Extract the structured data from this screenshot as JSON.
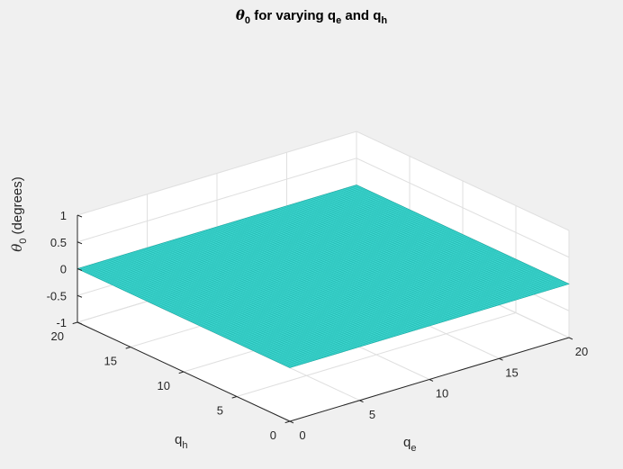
{
  "chart_data": {
    "type": "surface",
    "title": {
      "symbol": "θ",
      "symbol_sub": "0",
      "pre": " for varying q",
      "pre_sub": "e",
      "mid": " and q",
      "mid_sub": "h"
    },
    "xlabel": {
      "base": "q",
      "sub": "e"
    },
    "ylabel": {
      "base": "q",
      "sub": "h"
    },
    "zlabel": {
      "symbol": "θ",
      "sub": "0",
      "rest": " (degrees)"
    },
    "xlim": [
      0,
      20
    ],
    "ylim": [
      0,
      20
    ],
    "zlim": [
      -1,
      1
    ],
    "x_ticks": [
      "0",
      "5",
      "10",
      "15",
      "20"
    ],
    "y_ticks": [
      "0",
      "5",
      "10",
      "15",
      "20"
    ],
    "z_ticks": [
      "-1",
      "-0.5",
      "0",
      "0.5",
      "1"
    ],
    "x_tick_values": [
      0,
      5,
      10,
      15,
      20
    ],
    "y_tick_values": [
      0,
      5,
      10,
      15,
      20
    ],
    "z_tick_values": [
      -1,
      -0.5,
      0,
      0.5,
      1
    ],
    "surface": {
      "x_range": [
        0,
        20
      ],
      "y_range": [
        0,
        20
      ],
      "z_value": 0,
      "mesh_divisions": 100
    },
    "grid": true,
    "colors": {
      "surface_face": "#3dd6cf",
      "surface_edge": "#1aa9a3",
      "pane": "#ffffff",
      "grid": "#dfdfdf",
      "axis": "#262626",
      "background": "#f0f0f0"
    }
  }
}
